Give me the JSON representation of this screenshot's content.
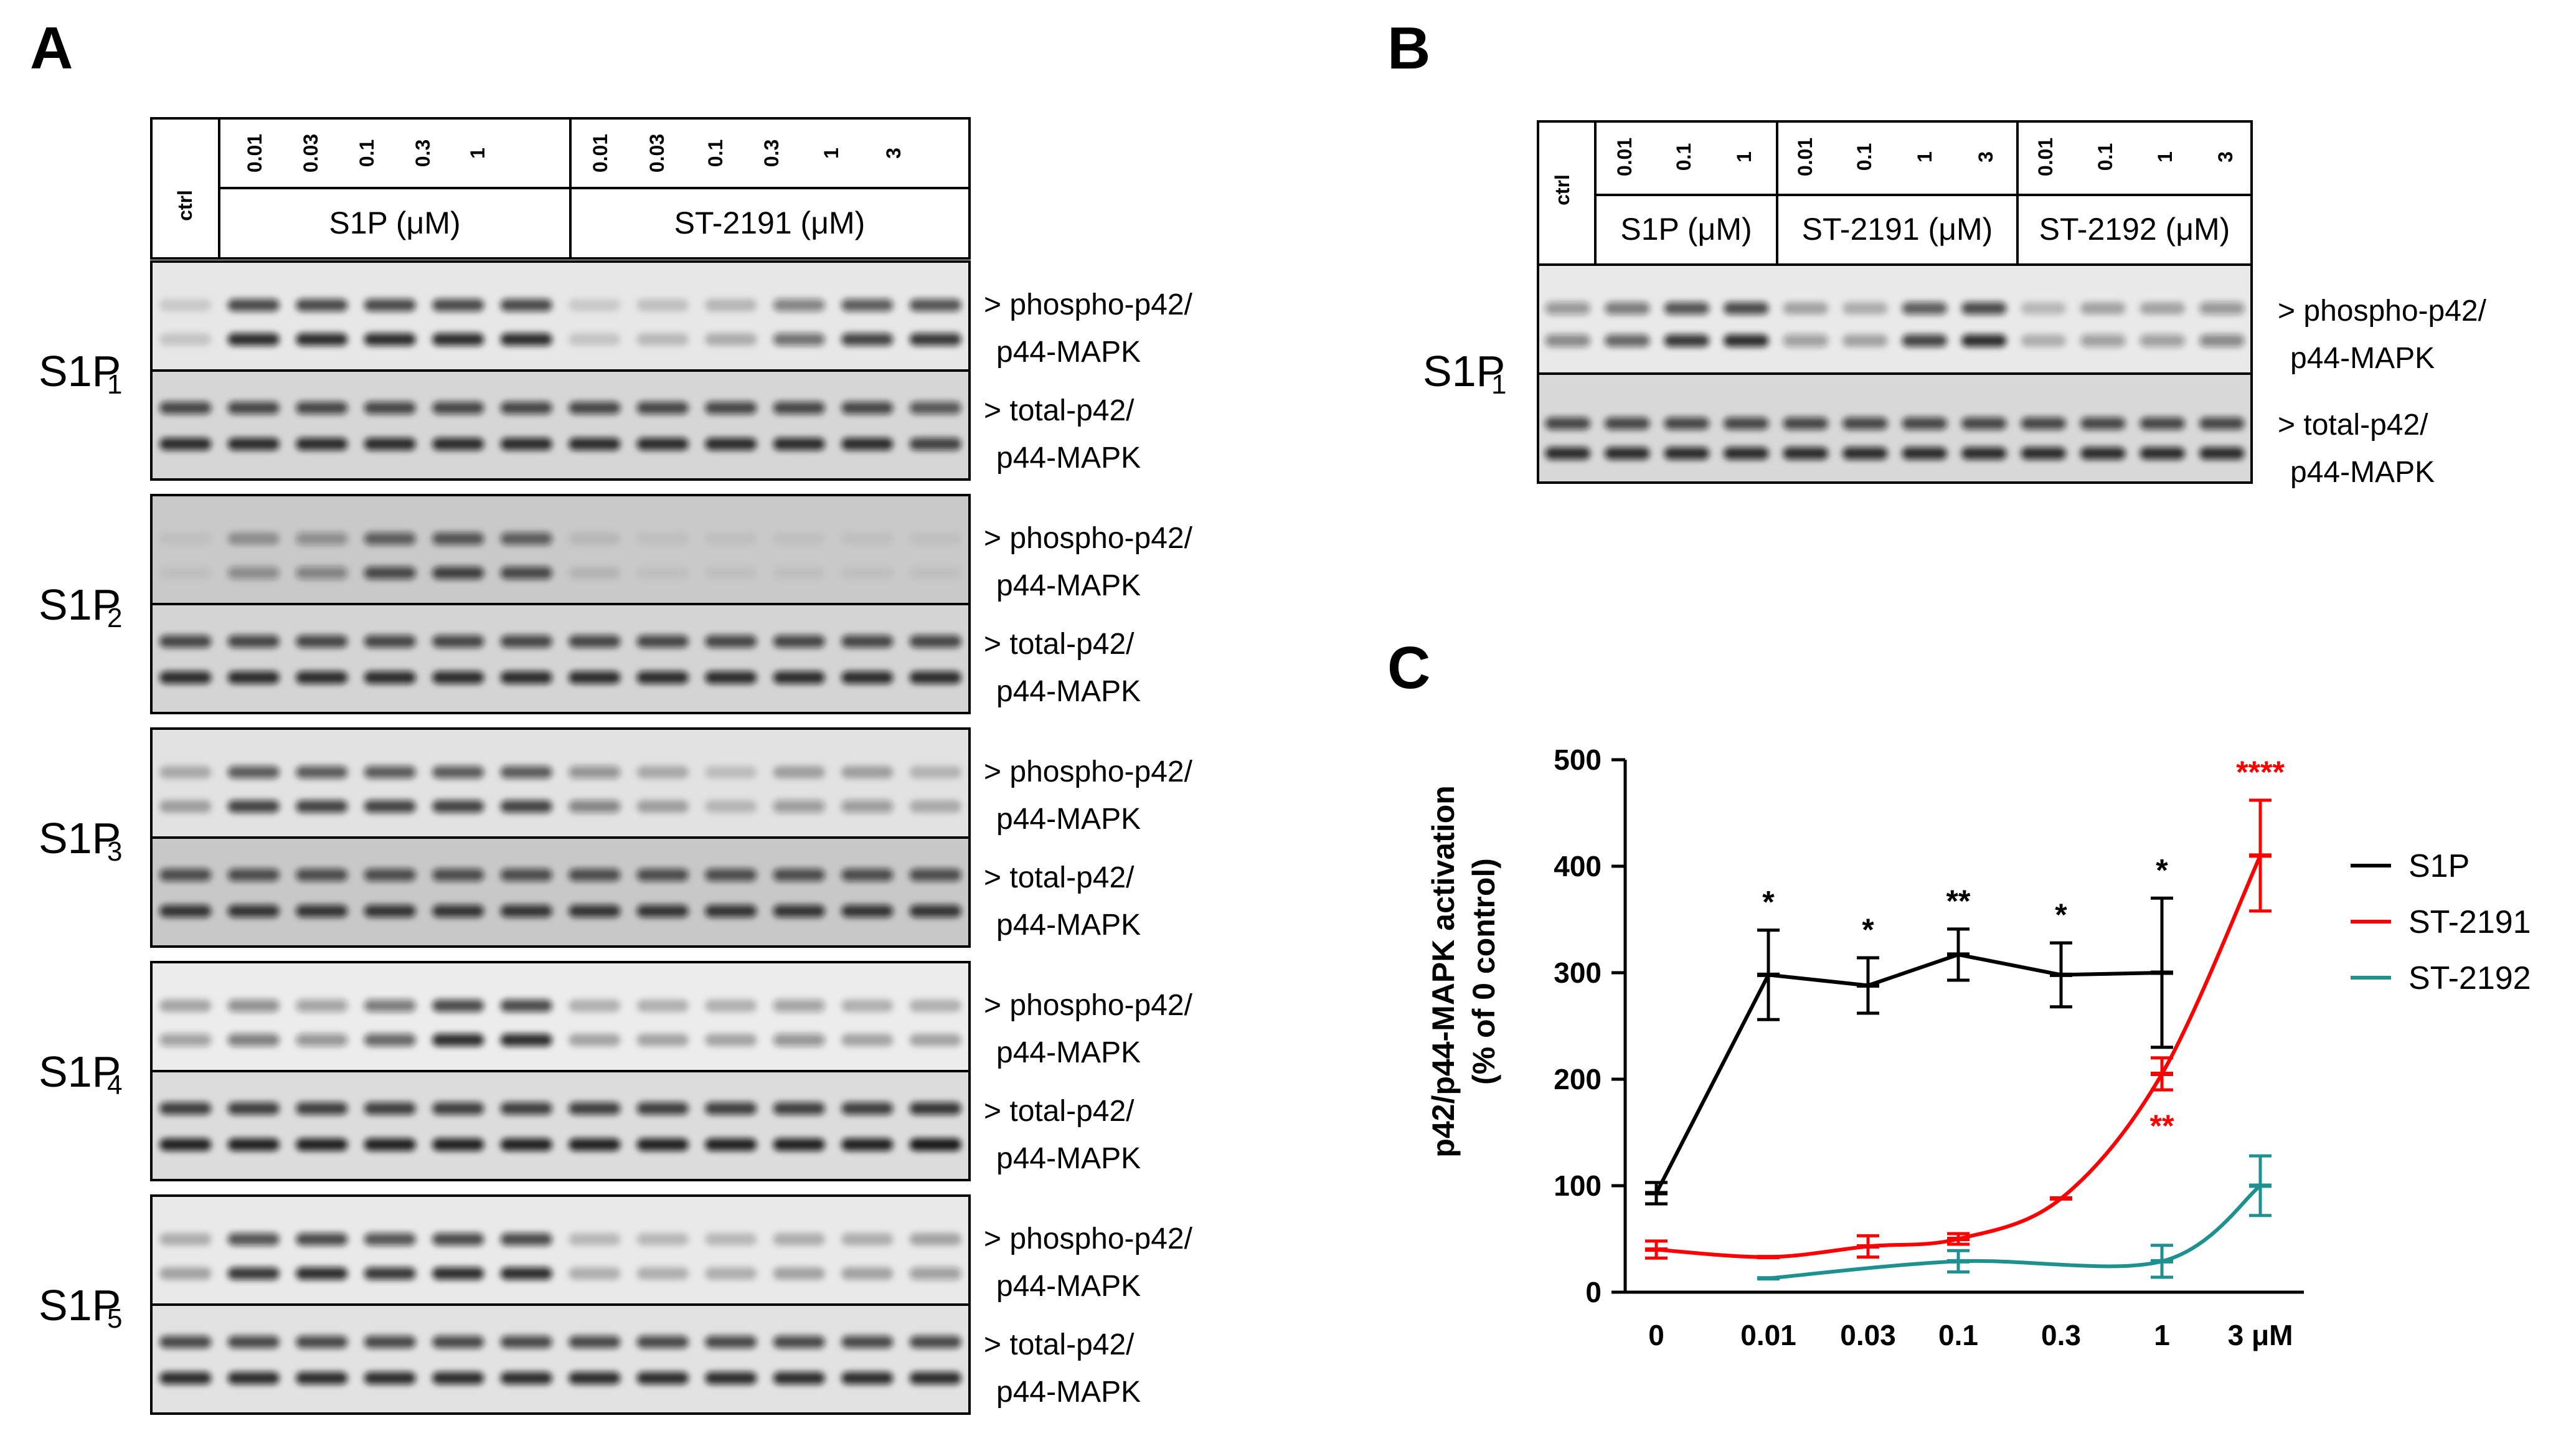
{
  "panels": {
    "A": {
      "letter": "A",
      "ctrl_label": "ctrl",
      "s1p_doses": [
        "0.01",
        "0.03",
        "0.1",
        "0.3",
        "1"
      ],
      "st2191_doses": [
        "0.01",
        "0.03",
        "0.1",
        "0.3",
        "1",
        "3"
      ],
      "group_labels": [
        "S1P (μM)",
        "ST-2191 (μM)"
      ],
      "receptors": [
        {
          "name": "S1P",
          "sub": "1",
          "phospho": [
            0.15,
            0.85,
            0.85,
            0.85,
            0.85,
            0.85,
            0.15,
            0.2,
            0.25,
            0.55,
            0.75,
            0.8
          ],
          "total": [
            0.85,
            0.85,
            0.85,
            0.85,
            0.85,
            0.85,
            0.85,
            0.85,
            0.85,
            0.85,
            0.85,
            0.75
          ]
        },
        {
          "name": "S1P",
          "sub": "2",
          "phospho": [
            0.05,
            0.35,
            0.4,
            0.7,
            0.75,
            0.7,
            0.1,
            0.05,
            0.05,
            0.05,
            0.05,
            0.05
          ],
          "total": [
            0.85,
            0.85,
            0.85,
            0.85,
            0.85,
            0.85,
            0.85,
            0.85,
            0.85,
            0.85,
            0.85,
            0.85
          ]
        },
        {
          "name": "S1P",
          "sub": "3",
          "phospho": [
            0.3,
            0.75,
            0.75,
            0.75,
            0.75,
            0.75,
            0.45,
            0.3,
            0.2,
            0.35,
            0.35,
            0.25
          ],
          "total": [
            0.8,
            0.8,
            0.8,
            0.8,
            0.8,
            0.8,
            0.8,
            0.8,
            0.8,
            0.8,
            0.8,
            0.8
          ]
        },
        {
          "name": "S1P",
          "sub": "4",
          "phospho": [
            0.35,
            0.5,
            0.4,
            0.6,
            0.85,
            0.85,
            0.3,
            0.3,
            0.3,
            0.4,
            0.3,
            0.3
          ],
          "total": [
            0.9,
            0.9,
            0.9,
            0.9,
            0.9,
            0.9,
            0.9,
            0.9,
            0.9,
            0.9,
            0.9,
            0.95
          ]
        },
        {
          "name": "S1P",
          "sub": "5",
          "phospho": [
            0.3,
            0.8,
            0.85,
            0.8,
            0.85,
            0.85,
            0.25,
            0.25,
            0.25,
            0.3,
            0.3,
            0.35
          ],
          "total": [
            0.85,
            0.85,
            0.85,
            0.85,
            0.85,
            0.85,
            0.85,
            0.85,
            0.85,
            0.85,
            0.85,
            0.85
          ]
        }
      ]
    },
    "B": {
      "letter": "B",
      "ctrl_label": "ctrl",
      "s1p_doses": [
        "0.01",
        "0.1",
        "1"
      ],
      "st2191_doses": [
        "0.01",
        "0.1",
        "1",
        "3"
      ],
      "st2192_doses": [
        "0.01",
        "0.1",
        "1",
        "3"
      ],
      "group_labels": [
        "S1P (μM)",
        "ST-2191 (μM)",
        "ST-2192 (μM)"
      ],
      "receptor": {
        "name": "S1P",
        "sub": "1"
      },
      "phospho": [
        0.45,
        0.6,
        0.8,
        0.85,
        0.35,
        0.3,
        0.75,
        0.85,
        0.25,
        0.35,
        0.35,
        0.45
      ],
      "total": [
        0.85,
        0.85,
        0.85,
        0.85,
        0.85,
        0.85,
        0.85,
        0.85,
        0.85,
        0.85,
        0.85,
        0.85
      ]
    }
  },
  "band_labels": {
    "phospho_line1": "> phospho-p42/",
    "phospho_line2": "p44-MAPK",
    "total_line1": "> total-p42/",
    "total_line2": "p44-MAPK"
  },
  "chart_data": {
    "type": "line",
    "panel_letter": "C",
    "ylabel_line1": "p42/p44-MAPK activation",
    "ylabel_line2": "(% of 0 control)",
    "ylim": [
      0,
      500
    ],
    "yticks": [
      "0",
      "100",
      "200",
      "300",
      "400",
      "500"
    ],
    "categories": [
      "0",
      "0.01",
      "0.03",
      "0.1",
      "0.3",
      "1",
      "3 μM"
    ],
    "series": [
      {
        "name": "S1P",
        "color": "#000000",
        "x": [
          0,
          1,
          2,
          3,
          4,
          5
        ],
        "values": [
          93,
          298,
          288,
          317,
          298,
          300
        ],
        "errors": [
          10,
          42,
          26,
          24,
          30,
          70
        ],
        "annotations": [
          null,
          "*",
          "*",
          "**",
          "*",
          "*"
        ]
      },
      {
        "name": "ST-2191",
        "color": "#ff0000",
        "x": [
          0,
          1,
          2,
          3,
          4,
          5,
          6
        ],
        "values": [
          40,
          33,
          43,
          50,
          88,
          205,
          410
        ],
        "errors": [
          8,
          0,
          10,
          5,
          0,
          15,
          52
        ],
        "annotations": [
          null,
          null,
          null,
          null,
          null,
          "**",
          "****"
        ]
      },
      {
        "name": "ST-2192",
        "color": "#1e9090",
        "x": [
          1,
          3,
          5,
          6
        ],
        "values": [
          13,
          29,
          29,
          100
        ],
        "errors": [
          0,
          10,
          15,
          28
        ],
        "annotations": [
          null,
          null,
          null,
          null
        ]
      }
    ]
  }
}
